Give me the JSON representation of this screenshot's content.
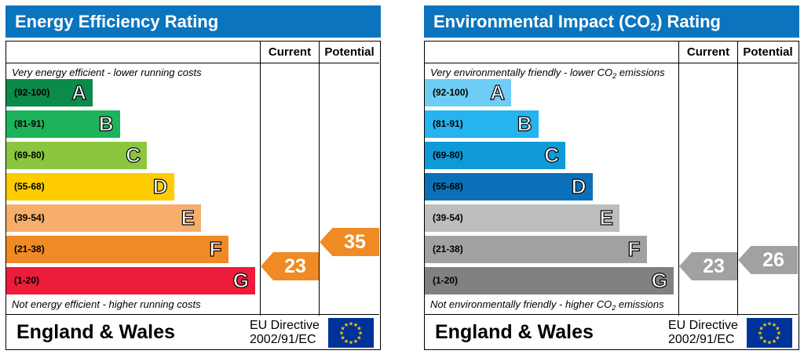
{
  "chart_data": [
    {
      "type": "bar",
      "title": "Energy Efficiency Rating",
      "columns": [
        "Current",
        "Potential"
      ],
      "top_note": "Very energy efficient - lower running costs",
      "bottom_note": "Not energy efficient - higher running costs",
      "bands": [
        {
          "range": "(92-100)",
          "letter": "A",
          "color": "#0c8a4a"
        },
        {
          "range": "(81-91)",
          "letter": "B",
          "color": "#1db35b"
        },
        {
          "range": "(69-80)",
          "letter": "C",
          "color": "#8cc63f"
        },
        {
          "range": "(55-68)",
          "letter": "D",
          "color": "#ffcc00"
        },
        {
          "range": "(39-54)",
          "letter": "E",
          "color": "#f7ad6b"
        },
        {
          "range": "(21-38)",
          "letter": "F",
          "color": "#f08a24"
        },
        {
          "range": "(1-20)",
          "letter": "G",
          "color": "#ec1c3a"
        }
      ],
      "current": {
        "value": 23,
        "band": "F",
        "color": "#f08a24"
      },
      "potential": {
        "value": 35,
        "band": "F",
        "color": "#f08a24"
      },
      "footer": {
        "country": "England & Wales",
        "directive_line1": "EU Directive",
        "directive_line2": "2002/91/EC"
      }
    },
    {
      "type": "bar",
      "title": "Environmental Impact (CO",
      "title_sub": "2",
      "title_suffix": ") Rating",
      "columns": [
        "Current",
        "Potential"
      ],
      "top_note": "Very environmentally friendly - lower CO",
      "top_note_sub": "2",
      "top_note_suffix": " emissions",
      "bottom_note": "Not environmentally friendly - higher CO",
      "bottom_note_sub": "2",
      "bottom_note_suffix": " emissions",
      "bands": [
        {
          "range": "(92-100)",
          "letter": "A",
          "color": "#6fcdf5"
        },
        {
          "range": "(81-91)",
          "letter": "B",
          "color": "#25b4ee"
        },
        {
          "range": "(69-80)",
          "letter": "C",
          "color": "#0e9ad7"
        },
        {
          "range": "(55-68)",
          "letter": "D",
          "color": "#0a71b8"
        },
        {
          "range": "(39-54)",
          "letter": "E",
          "color": "#bcbdbf"
        },
        {
          "range": "(21-38)",
          "letter": "F",
          "color": "#a0a1a3"
        },
        {
          "range": "(1-20)",
          "letter": "G",
          "color": "#808183"
        }
      ],
      "current": {
        "value": 23,
        "band": "F",
        "color": "#a0a1a3"
      },
      "potential": {
        "value": 26,
        "band": "F",
        "color": "#a0a1a3"
      },
      "footer": {
        "country": "England & Wales",
        "directive_line1": "EU Directive",
        "directive_line2": "2002/91/EC"
      }
    }
  ]
}
